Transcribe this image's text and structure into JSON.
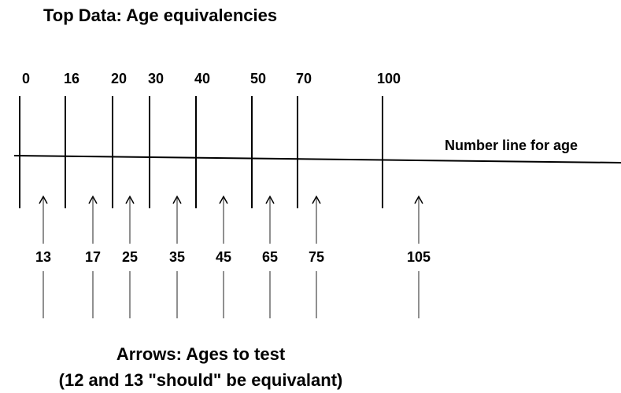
{
  "title": "Top Data: Age equivalencies",
  "number_line": {
    "label": "Number line for age",
    "ticks": [
      "0",
      "16",
      "20",
      "30",
      "40",
      "50",
      "70",
      "100"
    ]
  },
  "arrows": [
    "13",
    "17",
    "25",
    "35",
    "45",
    "65",
    "75",
    "105"
  ],
  "caption": [
    "Arrows: Ages to test",
    "(12 and 13 \"should\" be equivalant)"
  ]
}
